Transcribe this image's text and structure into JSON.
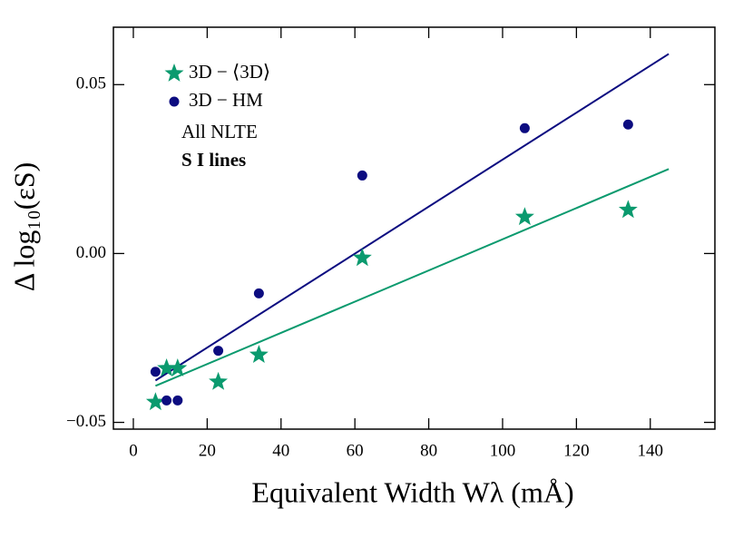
{
  "chart_data": {
    "type": "scatter",
    "x_label": "Equivalent Width Wλ (mÅ)",
    "y_label": "Δ log₁₀(εS)",
    "xlim": [
      -5.4,
      157.5
    ],
    "xticks": [
      0,
      20,
      40,
      60,
      80,
      100,
      120,
      140
    ],
    "ylim": [
      -0.052,
      0.067
    ],
    "yticks": [
      {
        "value": -0.05,
        "label": "−0.05"
      },
      {
        "value": 0,
        "label": "0.00"
      },
      0.05
    ],
    "legend": "upper left",
    "series": [
      {
        "name": "3D − ⟨3D⟩",
        "color": "#0a9a6e",
        "marker": "star",
        "x": [
          6,
          9,
          12,
          23,
          34,
          62,
          106,
          134
        ],
        "values": [
          -0.044,
          -0.034,
          -0.034,
          -0.038,
          -0.03,
          -0.0013,
          0.0108,
          0.0129
        ]
      },
      {
        "name": "3D − HM",
        "color": "#0c0c80",
        "marker": "circle",
        "x": [
          6,
          9,
          12,
          23,
          34,
          62,
          106,
          134
        ],
        "values": [
          -0.035,
          -0.0435,
          -0.0435,
          -0.0288,
          -0.0118,
          0.0231,
          0.0371,
          0.0382
        ]
      }
    ],
    "fits": [
      {
        "color": "#0a9a6e",
        "x": [
          6,
          145
        ],
        "values": [
          -0.0392,
          0.025
        ]
      },
      {
        "color": "#0c0c80",
        "x": [
          6,
          145
        ],
        "values": [
          -0.0376,
          0.0591
        ]
      }
    ],
    "annotations": [
      "All NLTE",
      "S I lines"
    ]
  }
}
